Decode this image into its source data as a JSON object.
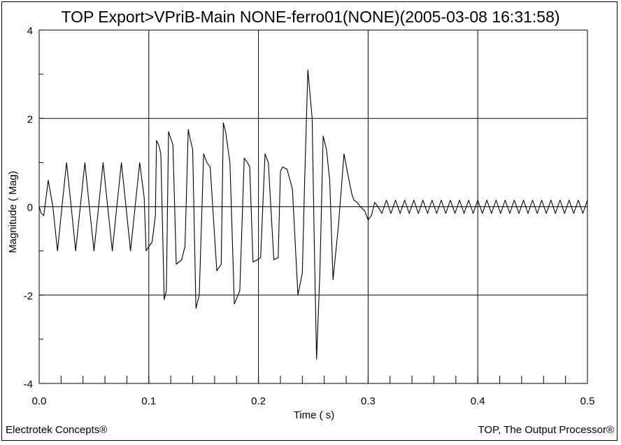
{
  "chart_data": {
    "type": "line",
    "title": "TOP Export>VPriB-Main NONE-ferro01(NONE)(2005-03-08 16:31:58)",
    "xlabel": "Time ( s)",
    "ylabel": "Magnitude ( Mag)",
    "xlim": [
      0,
      0.5
    ],
    "ylim": [
      -4,
      4
    ],
    "x_ticks": [
      0.0,
      0.1,
      0.2,
      0.3,
      0.4,
      0.5
    ],
    "x_tick_labels": [
      "0.0",
      "0.1",
      "0.2",
      "0.3",
      "0.4",
      "0.5"
    ],
    "y_ticks": [
      4,
      2,
      0,
      -2,
      -4
    ],
    "y_tick_labels": [
      "4",
      "2",
      "0",
      "-2",
      "-4"
    ],
    "grid": true,
    "series": [
      {
        "x": [
          0.0,
          0.002,
          0.0042,
          0.0083,
          0.0125,
          0.0167,
          0.0208,
          0.025,
          0.0292,
          0.0333,
          0.0375,
          0.0417,
          0.0458,
          0.05,
          0.0542,
          0.0583,
          0.0625,
          0.0667,
          0.0708,
          0.075,
          0.0792,
          0.0833,
          0.0875,
          0.0917,
          0.0958,
          0.0975,
          0.1,
          0.103,
          0.106,
          0.107,
          0.109,
          0.111,
          0.114,
          0.116,
          0.118,
          0.122,
          0.125,
          0.13,
          0.133,
          0.136,
          0.138,
          0.14,
          0.143,
          0.146,
          0.15,
          0.153,
          0.156,
          0.162,
          0.166,
          0.168,
          0.17,
          0.174,
          0.178,
          0.183,
          0.187,
          0.19,
          0.192,
          0.195,
          0.199,
          0.202,
          0.206,
          0.209,
          0.214,
          0.218,
          0.22,
          0.222,
          0.226,
          0.231,
          0.236,
          0.24,
          0.242,
          0.245,
          0.249,
          0.251,
          0.253,
          0.256,
          0.259,
          0.262,
          0.265,
          0.268,
          0.273,
          0.278,
          0.281,
          0.285,
          0.287,
          0.29,
          0.293,
          0.297,
          0.3,
          0.303,
          0.306,
          0.309,
          0.3125,
          0.3167,
          0.3208,
          0.325,
          0.3292,
          0.3333,
          0.3375,
          0.3417,
          0.3458,
          0.35,
          0.3542,
          0.3583,
          0.3625,
          0.3667,
          0.3708,
          0.375,
          0.3792,
          0.3833,
          0.3875,
          0.3917,
          0.3958,
          0.4,
          0.4042,
          0.4083,
          0.4125,
          0.4167,
          0.4208,
          0.425,
          0.4292,
          0.4333,
          0.4375,
          0.4417,
          0.4458,
          0.45,
          0.4542,
          0.4583,
          0.4625,
          0.4667,
          0.4708,
          0.475,
          0.4792,
          0.4833,
          0.4875,
          0.4917,
          0.4958,
          0.5
        ],
        "y": [
          0.0,
          -0.15,
          -0.2,
          0.6,
          0.0,
          -1.0,
          0.0,
          1.0,
          0.0,
          -1.0,
          0.0,
          1.0,
          0.0,
          -1.0,
          0.0,
          1.0,
          0.0,
          -1.0,
          0.0,
          1.0,
          0.0,
          -1.0,
          0.0,
          1.0,
          0.2,
          -1.0,
          -0.9,
          -0.8,
          -0.2,
          1.5,
          1.4,
          1.2,
          -2.1,
          -1.9,
          1.7,
          1.4,
          -1.3,
          -1.2,
          -0.9,
          1.75,
          1.5,
          1.3,
          -2.3,
          -2.0,
          1.2,
          1.0,
          0.9,
          -1.45,
          -1.3,
          1.9,
          1.7,
          1.0,
          -2.2,
          -1.9,
          1.1,
          1.0,
          0.9,
          -1.25,
          -1.2,
          -1.15,
          1.2,
          1.0,
          -1.2,
          -1.15,
          0.8,
          0.9,
          0.85,
          0.4,
          -2.0,
          -1.5,
          0.5,
          3.1,
          2.0,
          -1.0,
          -3.45,
          -1.5,
          1.6,
          1.3,
          0.6,
          -1.65,
          -0.4,
          1.2,
          0.8,
          0.3,
          0.15,
          0.1,
          0.0,
          -0.1,
          -0.3,
          -0.2,
          0.1,
          0.0,
          -0.15,
          0.15,
          -0.15,
          0.15,
          -0.15,
          0.15,
          -0.15,
          0.15,
          -0.15,
          0.15,
          -0.15,
          0.15,
          -0.15,
          0.15,
          -0.15,
          0.15,
          -0.15,
          0.15,
          -0.15,
          0.15,
          -0.15,
          0.15,
          -0.15,
          0.15,
          -0.15,
          0.15,
          -0.15,
          0.15,
          -0.15,
          0.15,
          -0.15,
          0.15,
          -0.15,
          0.15,
          -0.15,
          0.15,
          -0.15,
          0.15,
          -0.15,
          0.15,
          -0.15,
          0.15,
          -0.15,
          0.15,
          -0.15,
          0.15
        ]
      }
    ]
  },
  "footer": {
    "left": "Electrotek Concepts®",
    "right": "TOP, The Output Processor®"
  },
  "colors": {
    "line": "#000000",
    "grid": "#000000",
    "background": "#ffffff"
  }
}
